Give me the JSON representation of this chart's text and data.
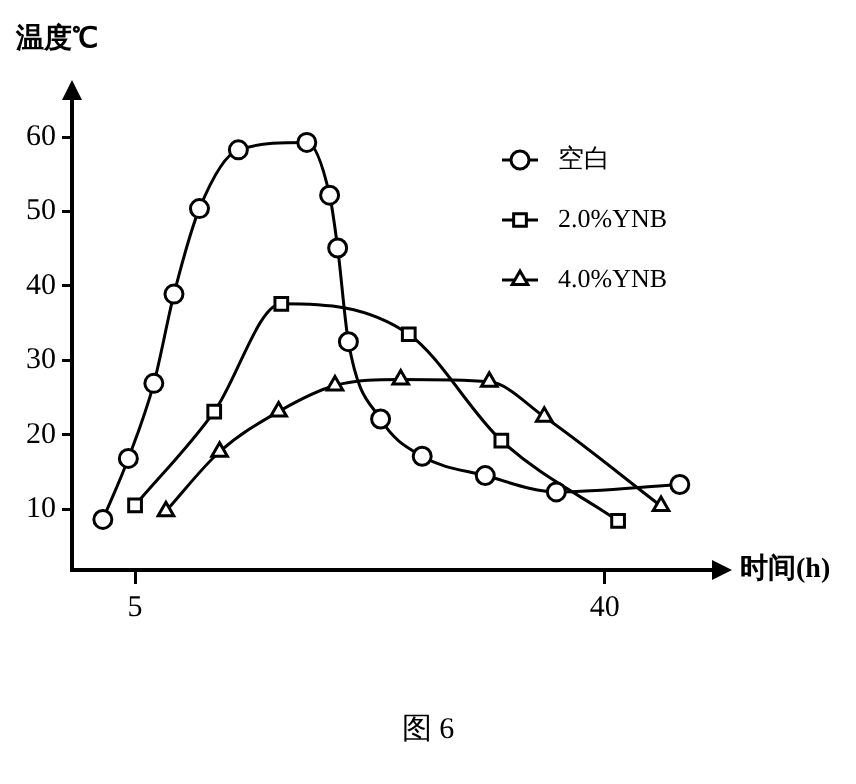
{
  "chart_data": {
    "type": "line",
    "xlabel": "时间(h)",
    "ylabel": "温度℃",
    "annotations": [
      "图 6"
    ],
    "xlim": [
      0.3,
      48
    ],
    "xticks": [
      5,
      40
    ],
    "ylim": [
      1.8,
      65
    ],
    "yticks": [
      10,
      20,
      30,
      40,
      50,
      60
    ],
    "grid": false,
    "legend": "top right",
    "line_style": "solid",
    "series": [
      {
        "name": "空白",
        "color": "#000000",
        "marker": "circle",
        "x": [
          2.6,
          4.5,
          6.4,
          7.9,
          9.8,
          12.7,
          17.8,
          19.5,
          20.1,
          20.9,
          23.3,
          26.4,
          31.1,
          36.4,
          45.6
        ],
        "values": [
          8.6,
          16.8,
          26.9,
          38.9,
          50.4,
          58.3,
          59.3,
          52.2,
          45.1,
          32.5,
          22.1,
          17.1,
          14.5,
          12.3,
          13.3
        ]
      },
      {
        "name": "2.0%YNB",
        "color": "#000000",
        "marker": "square",
        "x": [
          5,
          10.9,
          15.9,
          25.4,
          32.3,
          41.0
        ],
        "values": [
          10.5,
          23.1,
          37.6,
          33.5,
          19.2,
          8.4
        ]
      },
      {
        "name": "4.0%YNB",
        "color": "#000000",
        "marker": "triangle",
        "x": [
          7.3,
          11.3,
          15.7,
          19.9,
          24.8,
          31.4,
          35.5,
          44.2
        ],
        "values": [
          9.7,
          17.7,
          23.1,
          26.6,
          27.4,
          27.1,
          22.4,
          10.4
        ]
      }
    ]
  }
}
